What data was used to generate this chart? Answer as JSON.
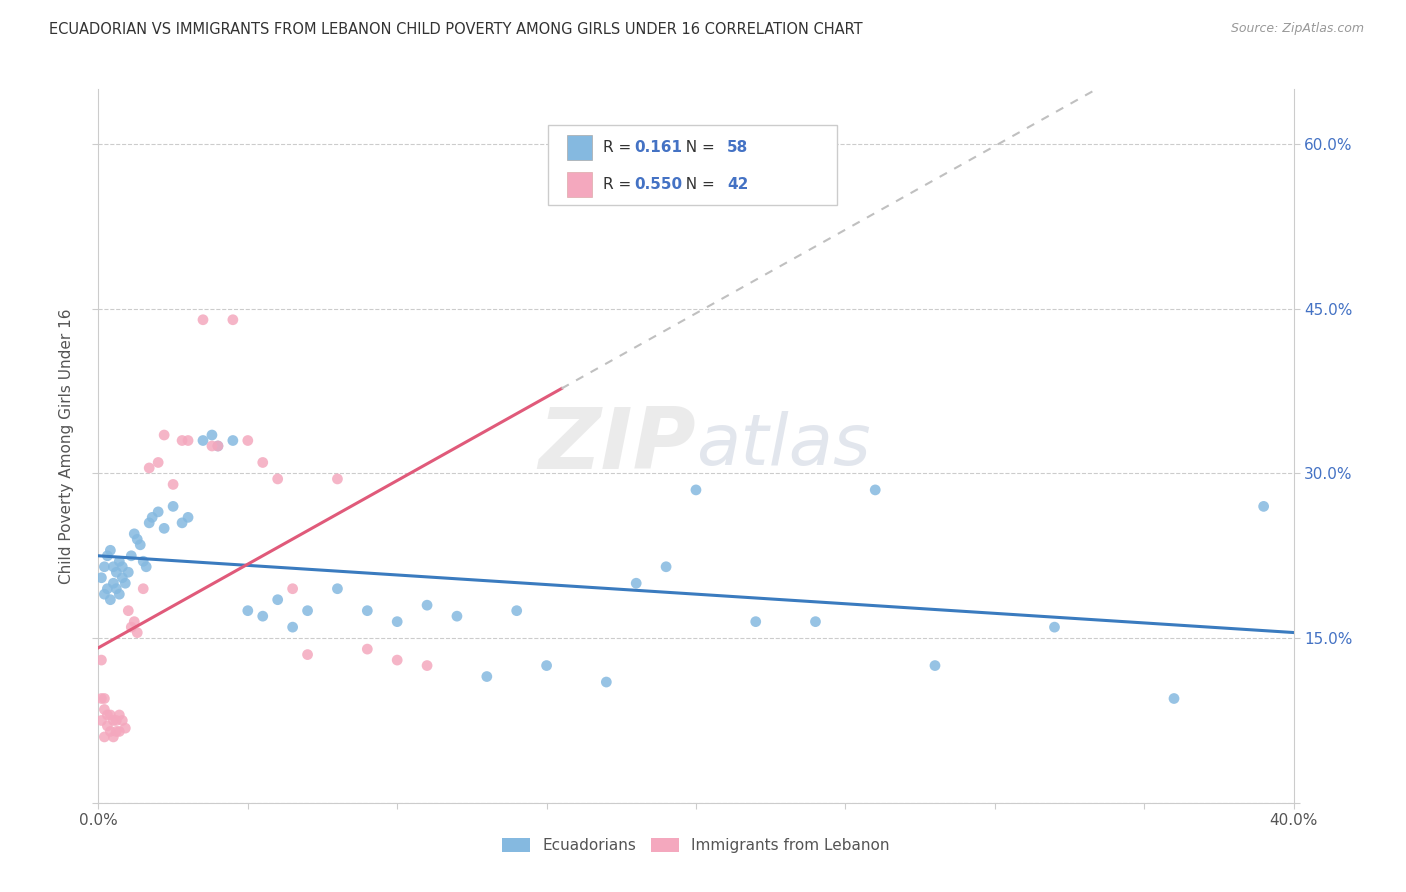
{
  "title": "ECUADORIAN VS IMMIGRANTS FROM LEBANON CHILD POVERTY AMONG GIRLS UNDER 16 CORRELATION CHART",
  "source": "Source: ZipAtlas.com",
  "ylabel": "Child Poverty Among Girls Under 16",
  "x_min": 0.0,
  "x_max": 0.4,
  "y_min": 0.0,
  "y_max": 0.65,
  "y_ticks": [
    0.0,
    0.15,
    0.3,
    0.45,
    0.6
  ],
  "y_tick_labels_right": [
    "",
    "15.0%",
    "30.0%",
    "45.0%",
    "60.0%"
  ],
  "grid_color": "#cccccc",
  "background_color": "#ffffff",
  "watermark": "ZIPatlas",
  "legend_R1": "0.161",
  "legend_N1": "58",
  "legend_R2": "0.550",
  "legend_N2": "42",
  "color_blue": "#85b9e0",
  "color_pink": "#f4a8be",
  "line_blue": "#3a7bbf",
  "line_pink": "#e05a7a",
  "line_gray": "#c0c0c0",
  "marker_size": 60,
  "blue_scatter_x": [
    0.001,
    0.002,
    0.002,
    0.003,
    0.003,
    0.004,
    0.004,
    0.005,
    0.005,
    0.006,
    0.006,
    0.007,
    0.007,
    0.008,
    0.008,
    0.009,
    0.01,
    0.011,
    0.012,
    0.013,
    0.014,
    0.015,
    0.016,
    0.017,
    0.018,
    0.02,
    0.022,
    0.025,
    0.028,
    0.03,
    0.035,
    0.038,
    0.04,
    0.045,
    0.05,
    0.055,
    0.06,
    0.065,
    0.07,
    0.08,
    0.09,
    0.1,
    0.11,
    0.12,
    0.13,
    0.14,
    0.15,
    0.17,
    0.18,
    0.19,
    0.2,
    0.22,
    0.24,
    0.26,
    0.28,
    0.32,
    0.36,
    0.39
  ],
  "blue_scatter_y": [
    0.205,
    0.215,
    0.19,
    0.225,
    0.195,
    0.23,
    0.185,
    0.215,
    0.2,
    0.21,
    0.195,
    0.22,
    0.19,
    0.215,
    0.205,
    0.2,
    0.21,
    0.225,
    0.245,
    0.24,
    0.235,
    0.22,
    0.215,
    0.255,
    0.26,
    0.265,
    0.25,
    0.27,
    0.255,
    0.26,
    0.33,
    0.335,
    0.325,
    0.33,
    0.175,
    0.17,
    0.185,
    0.16,
    0.175,
    0.195,
    0.175,
    0.165,
    0.18,
    0.17,
    0.115,
    0.175,
    0.125,
    0.11,
    0.2,
    0.215,
    0.285,
    0.165,
    0.165,
    0.285,
    0.125,
    0.16,
    0.095,
    0.27
  ],
  "pink_scatter_x": [
    0.001,
    0.001,
    0.001,
    0.002,
    0.002,
    0.002,
    0.003,
    0.003,
    0.004,
    0.004,
    0.005,
    0.005,
    0.006,
    0.006,
    0.007,
    0.007,
    0.008,
    0.009,
    0.01,
    0.011,
    0.012,
    0.013,
    0.015,
    0.017,
    0.02,
    0.022,
    0.025,
    0.028,
    0.03,
    0.035,
    0.038,
    0.04,
    0.045,
    0.05,
    0.055,
    0.06,
    0.065,
    0.07,
    0.08,
    0.09,
    0.1,
    0.11
  ],
  "pink_scatter_y": [
    0.13,
    0.095,
    0.075,
    0.085,
    0.095,
    0.06,
    0.08,
    0.07,
    0.08,
    0.065,
    0.075,
    0.06,
    0.075,
    0.065,
    0.08,
    0.065,
    0.075,
    0.068,
    0.175,
    0.16,
    0.165,
    0.155,
    0.195,
    0.305,
    0.31,
    0.335,
    0.29,
    0.33,
    0.33,
    0.44,
    0.325,
    0.325,
    0.44,
    0.33,
    0.31,
    0.295,
    0.195,
    0.135,
    0.295,
    0.14,
    0.13,
    0.125
  ],
  "pink_line_x_solid_start": 0.0,
  "pink_line_x_solid_end": 0.155,
  "pink_line_x_dash_start": 0.155,
  "pink_line_x_dash_end": 0.4,
  "blue_line_x_start": 0.0,
  "blue_line_x_end": 0.4
}
